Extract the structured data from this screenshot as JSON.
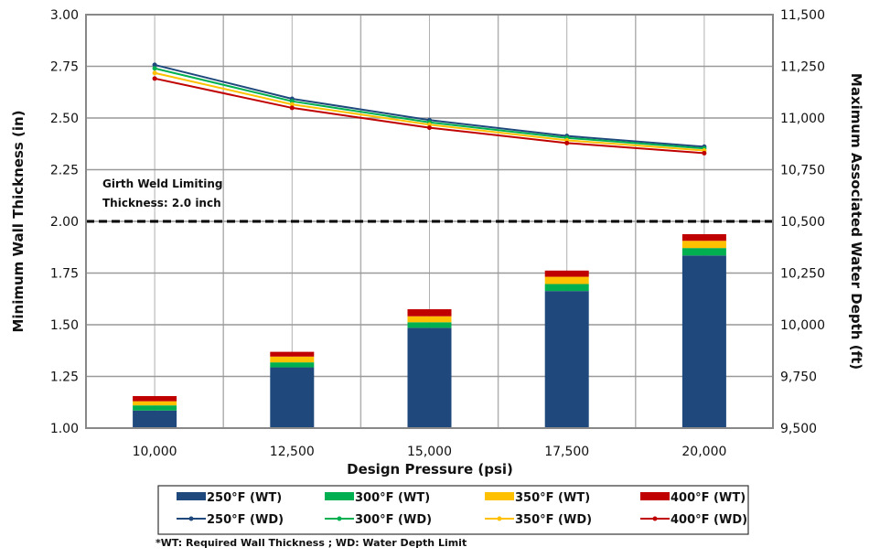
{
  "chart_data": {
    "type": "bar+line",
    "x_label": "Design Pressure (psi)",
    "y_left_label": "Minimum Wall Thickness (in)",
    "y_right_label": "Maximum Associated Water Depth (ft)",
    "categories": [
      "10,000",
      "12,500",
      "15,000",
      "17,500",
      "20,000"
    ],
    "y_left_ticks": [
      "1.00",
      "1.25",
      "1.50",
      "1.75",
      "2.00",
      "2.25",
      "2.50",
      "2.75",
      "3.00"
    ],
    "y_right_ticks": [
      "9,500",
      "9,750",
      "10,000",
      "10,250",
      "10,500",
      "10,750",
      "11,000",
      "11,250",
      "11,500"
    ],
    "y_left_range": [
      1.0,
      3.0
    ],
    "y_right_range": [
      9500,
      11500
    ],
    "grid": true,
    "bar_series_stacked_cumulative_thickness_in": [
      {
        "name": "250°F (WT)",
        "color": "#1f497d",
        "values": [
          1.085,
          1.294,
          1.485,
          1.663,
          1.835
        ]
      },
      {
        "name": "300°F (WT)",
        "color": "#00b050",
        "values": [
          1.11,
          1.318,
          1.512,
          1.697,
          1.871
        ]
      },
      {
        "name": "350°F (WT)",
        "color": "#ffc000",
        "values": [
          1.13,
          1.346,
          1.541,
          1.732,
          1.906
        ]
      },
      {
        "name": "400°F (WT)",
        "color": "#c00000",
        "values": [
          1.155,
          1.369,
          1.575,
          1.762,
          1.938
        ]
      }
    ],
    "line_series_water_depth_ft": [
      {
        "name": "250°F (WD)",
        "color": "#1f497d",
        "values": [
          11257,
          11093,
          10990,
          10913,
          10861
        ]
      },
      {
        "name": "300°F (WD)",
        "color": "#00b050",
        "values": [
          11240,
          11081,
          10979,
          10904,
          10853
        ]
      },
      {
        "name": "350°F (WD)",
        "color": "#ffc000",
        "values": [
          11218,
          11066,
          10968,
          10892,
          10843
        ]
      },
      {
        "name": "400°F (WD)",
        "color": "#c00000",
        "values": [
          11191,
          11049,
          10953,
          10879,
          10830
        ]
      }
    ],
    "reference_line": {
      "value": 2.0,
      "label_line1": "Girth Weld Limiting",
      "label_line2": "Thickness: 2.0 inch"
    },
    "legend_position": "bottom",
    "footnote": "*WT: Required  Wall Thickness ; WD: Water Depth Limit"
  }
}
